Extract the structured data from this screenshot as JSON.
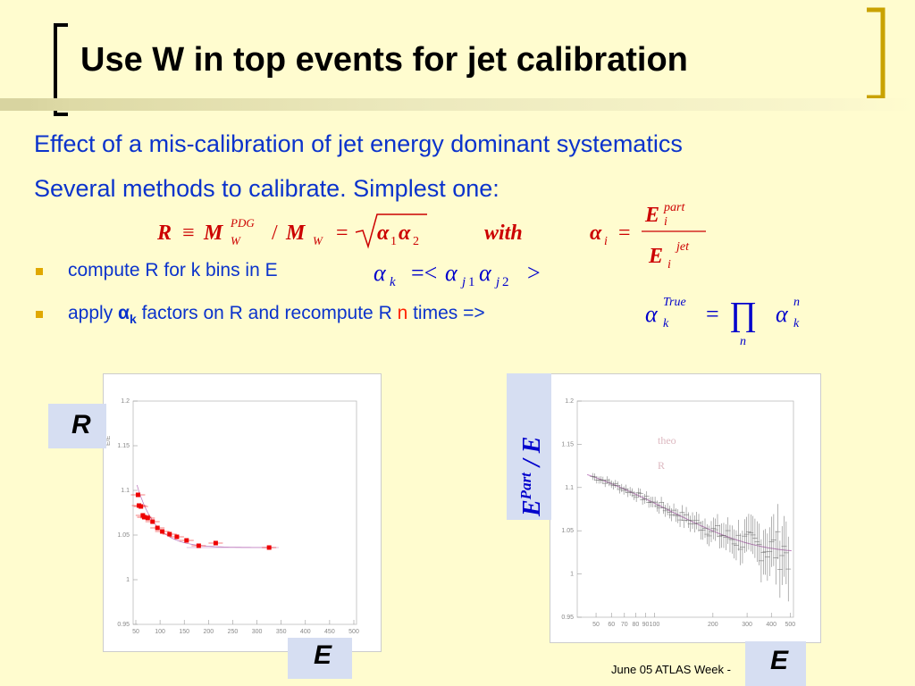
{
  "slide": {
    "title": "Use W in top events for jet calibration",
    "line1": "Effect of a mis-calibration of jet energy dominant systematics",
    "line2": "Several methods to calibrate. Simplest one:",
    "bullet1": "compute R for k bins in E",
    "bullet2_pre": "apply ",
    "bullet2_alpha": "α",
    "bullet2_sub": "k",
    "bullet2_mid": " factors on R and recompute R ",
    "bullet2_n": "n",
    "bullet2_post": " times =>",
    "footer": "June 05 ATLAS Week -"
  },
  "formula": {
    "R": "R",
    "equiv": "≡",
    "M": "M",
    "PDG": "PDG",
    "W": "W",
    "slash": "/",
    "eq": "=",
    "alpha": "α",
    "one": "1",
    "two": "2",
    "with": "with",
    "i": "i",
    "E": "E",
    "part": "part",
    "jet": "jet",
    "k": "k",
    "lt": "=<",
    "gt": ">",
    "j": "j",
    "True": "True",
    "prod": "∏",
    "n": "n"
  },
  "left_panel": {
    "label": "R",
    "x_label": "E"
  },
  "right_panel": {
    "label_main": "E",
    "label_sup": "Part",
    "label_rest": " / E",
    "x_label": "E",
    "legend_1": "theo",
    "legend_2": "R"
  },
  "chart_data": [
    {
      "type": "scatter",
      "x_ticks": [
        "50",
        "100",
        "150",
        "200",
        "250",
        "300",
        "350",
        "400",
        "450",
        "500"
      ],
      "y_ticks": [
        "0.95",
        "1",
        "1.05",
        "1.1",
        "1.15",
        "1.2"
      ],
      "ylim": [
        0.95,
        1.2
      ],
      "xlim": [
        40,
        500
      ],
      "ylabel": "E/E",
      "x": [
        50,
        52,
        56,
        60,
        63,
        70,
        80,
        90,
        100,
        115,
        130,
        150,
        175,
        210,
        320
      ],
      "y": [
        1.095,
        1.083,
        1.082,
        1.072,
        1.07,
        1.069,
        1.065,
        1.058,
        1.054,
        1.051,
        1.048,
        1.044,
        1.038,
        1.041,
        1.036
      ],
      "colors": {
        "points": "#ee0000",
        "fit": "#c080c0"
      }
    },
    {
      "type": "scatter",
      "x_ticks": [
        "50",
        "60",
        "70",
        "80",
        "90",
        "100",
        "200",
        "300",
        "400",
        "500"
      ],
      "y_ticks": [
        "0.95",
        "1",
        "1.05",
        "1.1",
        "1.15",
        "1.2"
      ],
      "ylim": [
        0.95,
        1.2
      ],
      "xscale": "log",
      "grid": false,
      "colors": {
        "points": "#666666",
        "curve": "#c080c0",
        "legend": "#ddb8c0"
      }
    }
  ]
}
